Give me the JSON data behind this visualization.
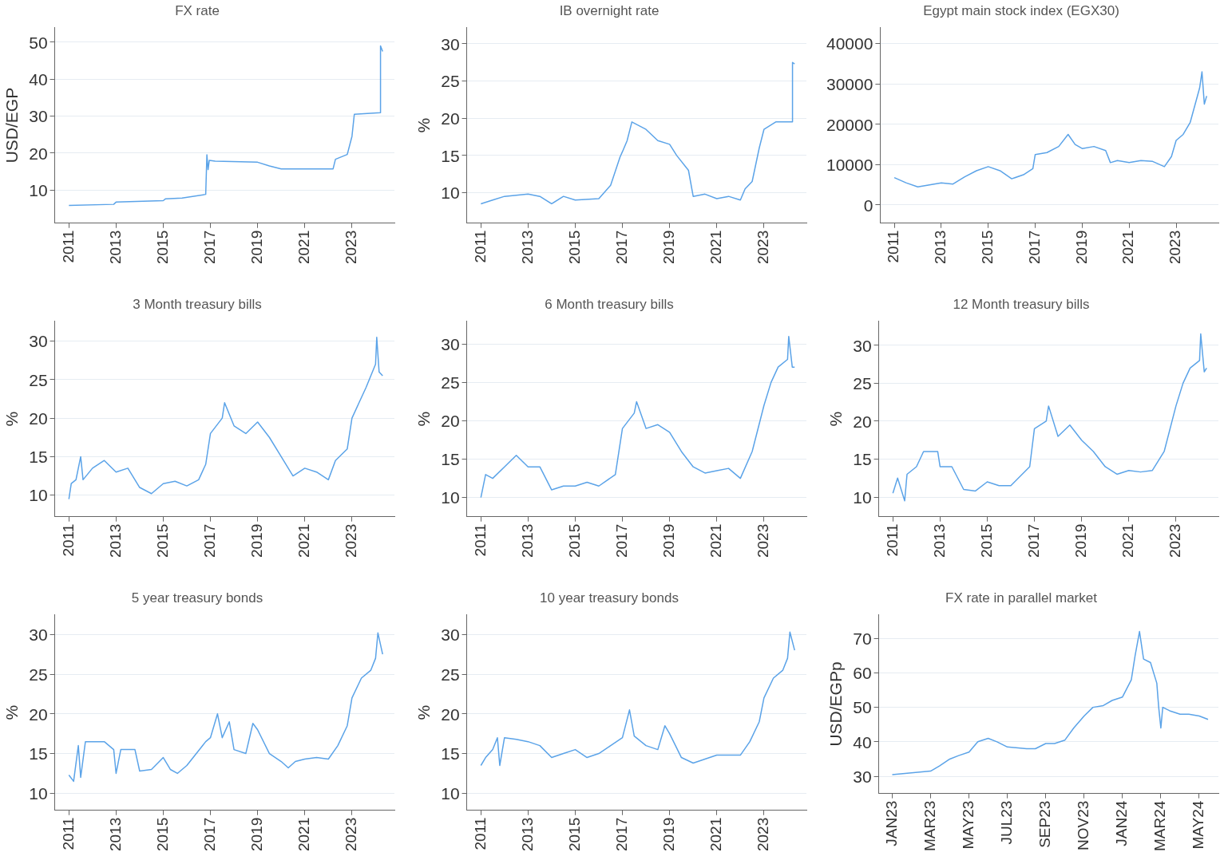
{
  "chart_data": [
    {
      "type": "line",
      "title": "FX rate",
      "ylabel": "USD/EGP",
      "color": "#5ba3e8",
      "grid": "y",
      "xlim": [
        2010.4,
        2024.8
      ],
      "ylim": [
        1,
        54
      ],
      "xticks": [
        2011,
        2013,
        2015,
        2017,
        2019,
        2021,
        2023
      ],
      "yticks": [
        10,
        20,
        30,
        40,
        50
      ],
      "x": [
        2011,
        2012.9,
        2013,
        2015,
        2015.1,
        2015.8,
        2016.8,
        2016.85,
        2016.9,
        2016.95,
        2017.2,
        2019,
        2019.5,
        2020,
        2022.2,
        2022.3,
        2022.8,
        2023,
        2023.1,
        2024.2,
        2024.21,
        2024.3
      ],
      "values": [
        5.8,
        6.1,
        6.7,
        7.1,
        7.6,
        7.8,
        8.8,
        19.5,
        15.5,
        18,
        17.8,
        17.5,
        16.5,
        15.7,
        15.7,
        18.3,
        19.6,
        24.5,
        30.5,
        30.9,
        49,
        47.5
      ]
    },
    {
      "type": "line",
      "title": "IB overnight rate",
      "ylabel": "%",
      "color": "#5ba3e8",
      "grid": "y",
      "xlim": [
        2010.4,
        2024.8
      ],
      "ylim": [
        5.9,
        32.2
      ],
      "xticks": [
        2011,
        2013,
        2015,
        2017,
        2019,
        2021,
        2023
      ],
      "yticks": [
        10,
        15,
        20,
        25,
        30
      ],
      "x": [
        2011,
        2011.5,
        2012,
        2013,
        2013.5,
        2014,
        2014.5,
        2015,
        2016,
        2016.5,
        2016.9,
        2017,
        2017.2,
        2017.4,
        2018,
        2018.5,
        2019,
        2019.3,
        2019.8,
        2020,
        2020.5,
        2021,
        2021.5,
        2022,
        2022.2,
        2022.5,
        2022.8,
        2023,
        2023.5,
        2024.2,
        2024.21,
        2024.3
      ],
      "values": [
        8.5,
        9,
        9.5,
        9.8,
        9.5,
        8.5,
        9.5,
        9,
        9.2,
        11,
        14.8,
        15.5,
        17,
        19.5,
        18.5,
        17,
        16.5,
        15,
        13,
        9.5,
        9.8,
        9.2,
        9.5,
        9,
        10.5,
        11.5,
        16,
        18.5,
        19.5,
        19.5,
        27.5,
        27.3
      ]
    },
    {
      "type": "line",
      "title": "Egypt main stock index (EGX30)",
      "color": "#5ba3e8",
      "grid": "y",
      "xlim": [
        2010.4,
        2024.8
      ],
      "ylim": [
        -4500,
        44000
      ],
      "xticks": [
        2011,
        2013,
        2015,
        2017,
        2019,
        2021,
        2023
      ],
      "yticks": [
        0,
        10000,
        20000,
        30000,
        40000
      ],
      "x": [
        2011,
        2011.5,
        2012,
        2012.5,
        2013,
        2013.5,
        2014,
        2014.5,
        2015,
        2015.5,
        2016,
        2016.5,
        2016.9,
        2017,
        2017.5,
        2018,
        2018.4,
        2018.7,
        2019,
        2019.5,
        2020,
        2020.2,
        2020.5,
        2021,
        2021.5,
        2022,
        2022.5,
        2022.8,
        2023,
        2023.3,
        2023.6,
        2024,
        2024.1,
        2024.2,
        2024.3
      ],
      "values": [
        6800,
        5500,
        4500,
        5000,
        5500,
        5200,
        7000,
        8500,
        9500,
        8500,
        6500,
        7500,
        9000,
        12500,
        13000,
        14500,
        17500,
        15000,
        14000,
        14500,
        13500,
        10500,
        11000,
        10500,
        11000,
        10800,
        9500,
        12000,
        16000,
        17500,
        20500,
        29000,
        33000,
        25000,
        27000
      ]
    },
    {
      "type": "line",
      "title": "3 Month treasury bills",
      "ylabel": "%",
      "color": "#5ba3e8",
      "grid": "y",
      "xlim": [
        2010.4,
        2024.8
      ],
      "ylim": [
        7.2,
        32.6
      ],
      "xticks": [
        2011,
        2013,
        2015,
        2017,
        2019,
        2021,
        2023
      ],
      "yticks": [
        10,
        15,
        20,
        25,
        30
      ],
      "x": [
        2011,
        2011.1,
        2011.3,
        2011.5,
        2011.6,
        2012,
        2012.5,
        2013,
        2013.5,
        2014,
        2014.5,
        2015,
        2015.5,
        2016,
        2016.5,
        2016.8,
        2017,
        2017.5,
        2017.6,
        2018,
        2018.5,
        2019,
        2019.5,
        2020,
        2020.5,
        2021,
        2021.5,
        2022,
        2022.3,
        2022.8,
        2023,
        2023.3,
        2023.6,
        2024,
        2024.05,
        2024.15,
        2024.3
      ],
      "values": [
        9.5,
        11.5,
        12,
        15,
        12,
        13.5,
        14.5,
        13,
        13.5,
        11,
        10.2,
        11.5,
        11.8,
        11.2,
        12,
        14,
        18,
        20,
        22,
        19,
        18,
        19.5,
        17.5,
        15,
        12.5,
        13.5,
        13,
        12,
        14.5,
        16,
        20,
        22,
        24,
        27,
        30.5,
        26,
        25.5
      ]
    },
    {
      "type": "line",
      "title": "6 Month treasury bills",
      "ylabel": "%",
      "color": "#5ba3e8",
      "grid": "y",
      "xlim": [
        2010.4,
        2024.8
      ],
      "ylim": [
        7.5,
        33
      ],
      "xticks": [
        2011,
        2013,
        2015,
        2017,
        2019,
        2021,
        2023
      ],
      "yticks": [
        10,
        15,
        20,
        25,
        30
      ],
      "x": [
        2011,
        2011.2,
        2011.5,
        2012,
        2012.5,
        2013,
        2013.5,
        2014,
        2014.5,
        2015,
        2015.5,
        2016,
        2016.7,
        2017,
        2017.5,
        2017.6,
        2018,
        2018.5,
        2019,
        2019.5,
        2020,
        2020.5,
        2021,
        2021.5,
        2022,
        2022.5,
        2023,
        2023.3,
        2023.6,
        2024,
        2024.05,
        2024.2,
        2024.3
      ],
      "values": [
        10,
        13,
        12.5,
        14,
        15.5,
        14,
        14,
        11,
        11.5,
        11.5,
        12,
        11.5,
        13,
        19,
        21,
        22.5,
        19,
        19.5,
        18.5,
        16,
        14,
        13.2,
        13.5,
        13.8,
        12.5,
        16,
        22,
        25,
        27,
        28,
        31,
        27,
        27
      ]
    },
    {
      "type": "line",
      "title": "12 Month treasury bills",
      "ylabel": "%",
      "color": "#5ba3e8",
      "grid": "y",
      "xlim": [
        2010.4,
        2024.8
      ],
      "ylim": [
        7.4,
        33.2
      ],
      "xticks": [
        2011,
        2013,
        2015,
        2017,
        2019,
        2021,
        2023
      ],
      "yticks": [
        10,
        15,
        20,
        25,
        30
      ],
      "x": [
        2011,
        2011.2,
        2011.5,
        2011.6,
        2012,
        2012.3,
        2012.9,
        2013,
        2013.5,
        2014,
        2014.5,
        2015,
        2015.5,
        2016,
        2016.8,
        2017,
        2017.5,
        2017.6,
        2018,
        2018.5,
        2019,
        2019.5,
        2020,
        2020.5,
        2021,
        2021.5,
        2022,
        2022.5,
        2023,
        2023.3,
        2023.6,
        2024,
        2024.05,
        2024.2,
        2024.3
      ],
      "values": [
        10.5,
        12.5,
        9.5,
        13,
        14,
        16,
        16,
        14,
        14,
        11,
        10.8,
        12,
        11.5,
        11.5,
        14,
        19,
        20,
        22,
        18,
        19.5,
        17.5,
        16,
        14,
        13,
        13.5,
        13.3,
        13.5,
        16,
        22,
        25,
        27,
        28,
        31.5,
        26.5,
        27
      ]
    },
    {
      "type": "line",
      "title": "5 year treasury bonds",
      "ylabel": "%",
      "color": "#5ba3e8",
      "grid": "y",
      "xlim": [
        2010.4,
        2024.8
      ],
      "ylim": [
        7.85,
        32.5
      ],
      "xticks": [
        2011,
        2013,
        2015,
        2017,
        2019,
        2021,
        2023
      ],
      "yticks": [
        10,
        15,
        20,
        25,
        30
      ],
      "x": [
        2011,
        2011.2,
        2011.4,
        2011.5,
        2011.7,
        2012.5,
        2012.9,
        2013,
        2013.2,
        2013.8,
        2014,
        2014.5,
        2015,
        2015.3,
        2015.6,
        2016,
        2016.8,
        2017,
        2017.3,
        2017.5,
        2017.8,
        2018,
        2018.5,
        2018.8,
        2019,
        2019.5,
        2020,
        2020.3,
        2020.6,
        2021,
        2021.5,
        2022,
        2022.4,
        2022.8,
        2023,
        2023.4,
        2023.8,
        2024,
        2024.1,
        2024.3
      ],
      "values": [
        12.3,
        11.5,
        16,
        12,
        16.5,
        16.5,
        15.5,
        12.5,
        15.5,
        15.5,
        12.8,
        13,
        14.5,
        13,
        12.5,
        13.5,
        16.5,
        17,
        20,
        17,
        19,
        15.5,
        15,
        18.8,
        18,
        15,
        14,
        13.2,
        14,
        14.3,
        14.5,
        14.3,
        16,
        18.5,
        22,
        24.5,
        25.5,
        27,
        30.2,
        27.5
      ]
    },
    {
      "type": "line",
      "title": "10 year treasury bonds",
      "ylabel": "%",
      "color": "#5ba3e8",
      "grid": "y",
      "xlim": [
        2010.4,
        2024.8
      ],
      "ylim": [
        7.85,
        32.5
      ],
      "xticks": [
        2011,
        2013,
        2015,
        2017,
        2019,
        2021,
        2023
      ],
      "yticks": [
        10,
        15,
        20,
        25,
        30
      ],
      "x": [
        2011,
        2011.2,
        2011.5,
        2011.7,
        2011.8,
        2012,
        2012.5,
        2013,
        2013.5,
        2014,
        2014.5,
        2015,
        2015.5,
        2016,
        2016.5,
        2017,
        2017.3,
        2017.5,
        2018,
        2018.5,
        2018.8,
        2019,
        2019.5,
        2020,
        2020.5,
        2021,
        2021.5,
        2022,
        2022.4,
        2022.8,
        2023,
        2023.4,
        2023.8,
        2024,
        2024.1,
        2024.3
      ],
      "values": [
        13.5,
        14.5,
        15.5,
        17,
        13.5,
        17,
        16.8,
        16.5,
        16,
        14.5,
        15,
        15.5,
        14.5,
        15,
        16,
        17,
        20.5,
        17.2,
        16,
        15.5,
        18.5,
        17.5,
        14.5,
        13.8,
        14.3,
        14.8,
        14.8,
        14.8,
        16.5,
        19,
        22,
        24.5,
        25.5,
        27,
        30.3,
        28
      ]
    },
    {
      "type": "line",
      "title": "FX rate in parallel market",
      "ylabel": "USD/EGPp",
      "color": "#5ba3e8",
      "grid": "y",
      "xlim": [
        "2022-12-10",
        "2024-06-01"
      ],
      "ylim": [
        25,
        76.9
      ],
      "xticks": [
        {
          "value": "2023-01-01",
          "label": "JAN23"
        },
        {
          "value": "2023-03-01",
          "label": "MAR23"
        },
        {
          "value": "2023-05-01",
          "label": "MAY23"
        },
        {
          "value": "2023-07-01",
          "label": "JUL23"
        },
        {
          "value": "2023-09-01",
          "label": "SEP23"
        },
        {
          "value": "2023-11-01",
          "label": "NOV23"
        },
        {
          "value": "2024-01-01",
          "label": "JAN24"
        },
        {
          "value": "2024-03-01",
          "label": "MAR24"
        },
        {
          "value": "2024-05-01",
          "label": "MAY24"
        }
      ],
      "yticks": [
        30,
        40,
        50,
        60,
        70
      ],
      "x": [
        "2023-01-01",
        "2023-02-01",
        "2023-03-01",
        "2023-03-15",
        "2023-04-01",
        "2023-04-15",
        "2023-05-01",
        "2023-05-15",
        "2023-06-01",
        "2023-06-15",
        "2023-07-01",
        "2023-08-01",
        "2023-08-15",
        "2023-09-01",
        "2023-09-15",
        "2023-10-01",
        "2023-10-15",
        "2023-11-01",
        "2023-11-15",
        "2023-12-01",
        "2023-12-15",
        "2024-01-01",
        "2024-01-15",
        "2024-01-21",
        "2024-01-28",
        "2024-02-04",
        "2024-02-15",
        "2024-02-25",
        "2024-02-28",
        "2024-03-01",
        "2024-03-04",
        "2024-03-15",
        "2024-04-01",
        "2024-04-15",
        "2024-05-01",
        "2024-05-15"
      ],
      "values": [
        30.5,
        31,
        31.5,
        33,
        35,
        36,
        37,
        40,
        41,
        40,
        38.5,
        38,
        38,
        39.5,
        39.5,
        40.5,
        44,
        47.5,
        50,
        50.5,
        52,
        53,
        58,
        65,
        72,
        64,
        63,
        57,
        50,
        44,
        50,
        49,
        48,
        48,
        47.5,
        46.5
      ]
    }
  ]
}
